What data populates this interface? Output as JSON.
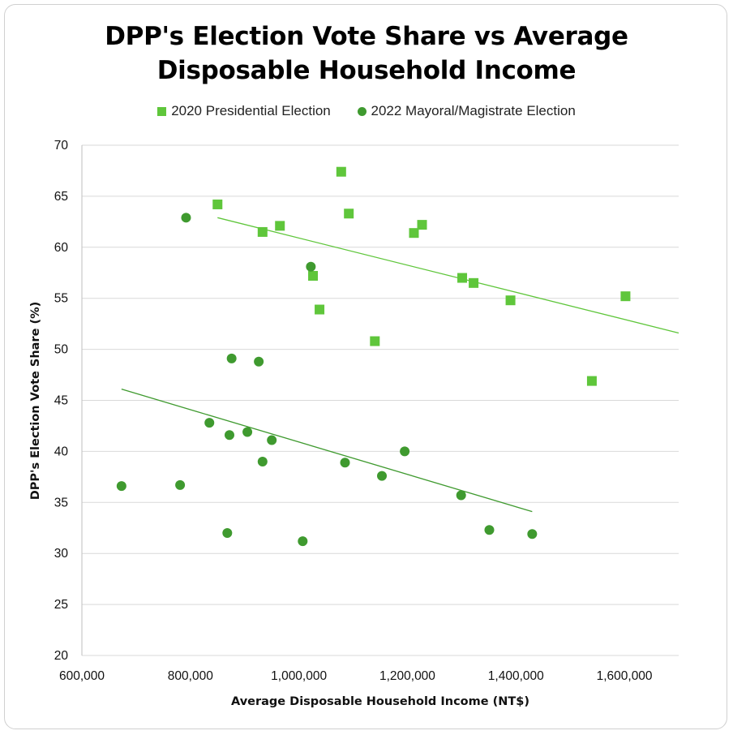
{
  "chart_data": {
    "type": "scatter",
    "title_lines": [
      "DPP's Election Vote Share vs Average",
      "Disposable Household Income"
    ],
    "xlabel": "Average Disposable Household Income (NT$)",
    "ylabel": "DPP's Election Vote Share (%)",
    "xlim": [
      600000,
      1700000
    ],
    "ylim": [
      20,
      70
    ],
    "x_ticks": [
      600000,
      800000,
      1000000,
      1200000,
      1400000,
      1600000
    ],
    "x_tick_labels": [
      "600,000",
      "800,000",
      "1,000,000",
      "1,200,000",
      "1,400,000",
      "1,600,000"
    ],
    "y_ticks": [
      20,
      25,
      30,
      35,
      40,
      45,
      50,
      55,
      60,
      65,
      70
    ],
    "y_tick_labels": [
      "20",
      "25",
      "30",
      "35",
      "40",
      "45",
      "50",
      "55",
      "60",
      "65",
      "70"
    ],
    "grid": "horizontal",
    "legend": "top",
    "series": [
      {
        "name": "2020 Presidential Election",
        "marker": "square",
        "color": "#5fc63b",
        "x": [
          850000,
          933000,
          965000,
          1026000,
          1038000,
          1078000,
          1092000,
          1140000,
          1212000,
          1227000,
          1301000,
          1322000,
          1390000,
          1540000,
          1602000
        ],
        "y": [
          64.2,
          61.5,
          62.1,
          57.2,
          53.9,
          67.4,
          63.3,
          50.8,
          61.4,
          62.2,
          57.0,
          56.5,
          54.8,
          46.9,
          55.2
        ],
        "trendline": {
          "x": [
            850000,
            1700000
          ],
          "y": [
            62.9,
            51.6
          ]
        }
      },
      {
        "name": "2022 Mayoral/Magistrate Election",
        "marker": "circle",
        "color": "#3f9a2f",
        "x": [
          673000,
          781000,
          792000,
          835000,
          868000,
          872000,
          876000,
          905000,
          926000,
          933000,
          950000,
          1007000,
          1022000,
          1085000,
          1153000,
          1195000,
          1299000,
          1351000,
          1430000
        ],
        "y": [
          36.6,
          36.7,
          62.9,
          42.8,
          32.0,
          41.6,
          49.1,
          41.9,
          48.8,
          39.0,
          41.1,
          31.2,
          58.1,
          38.9,
          37.6,
          40.0,
          35.7,
          32.3,
          31.9
        ],
        "trendline": {
          "x": [
            673000,
            1430000
          ],
          "y": [
            46.1,
            34.1
          ]
        }
      }
    ]
  }
}
